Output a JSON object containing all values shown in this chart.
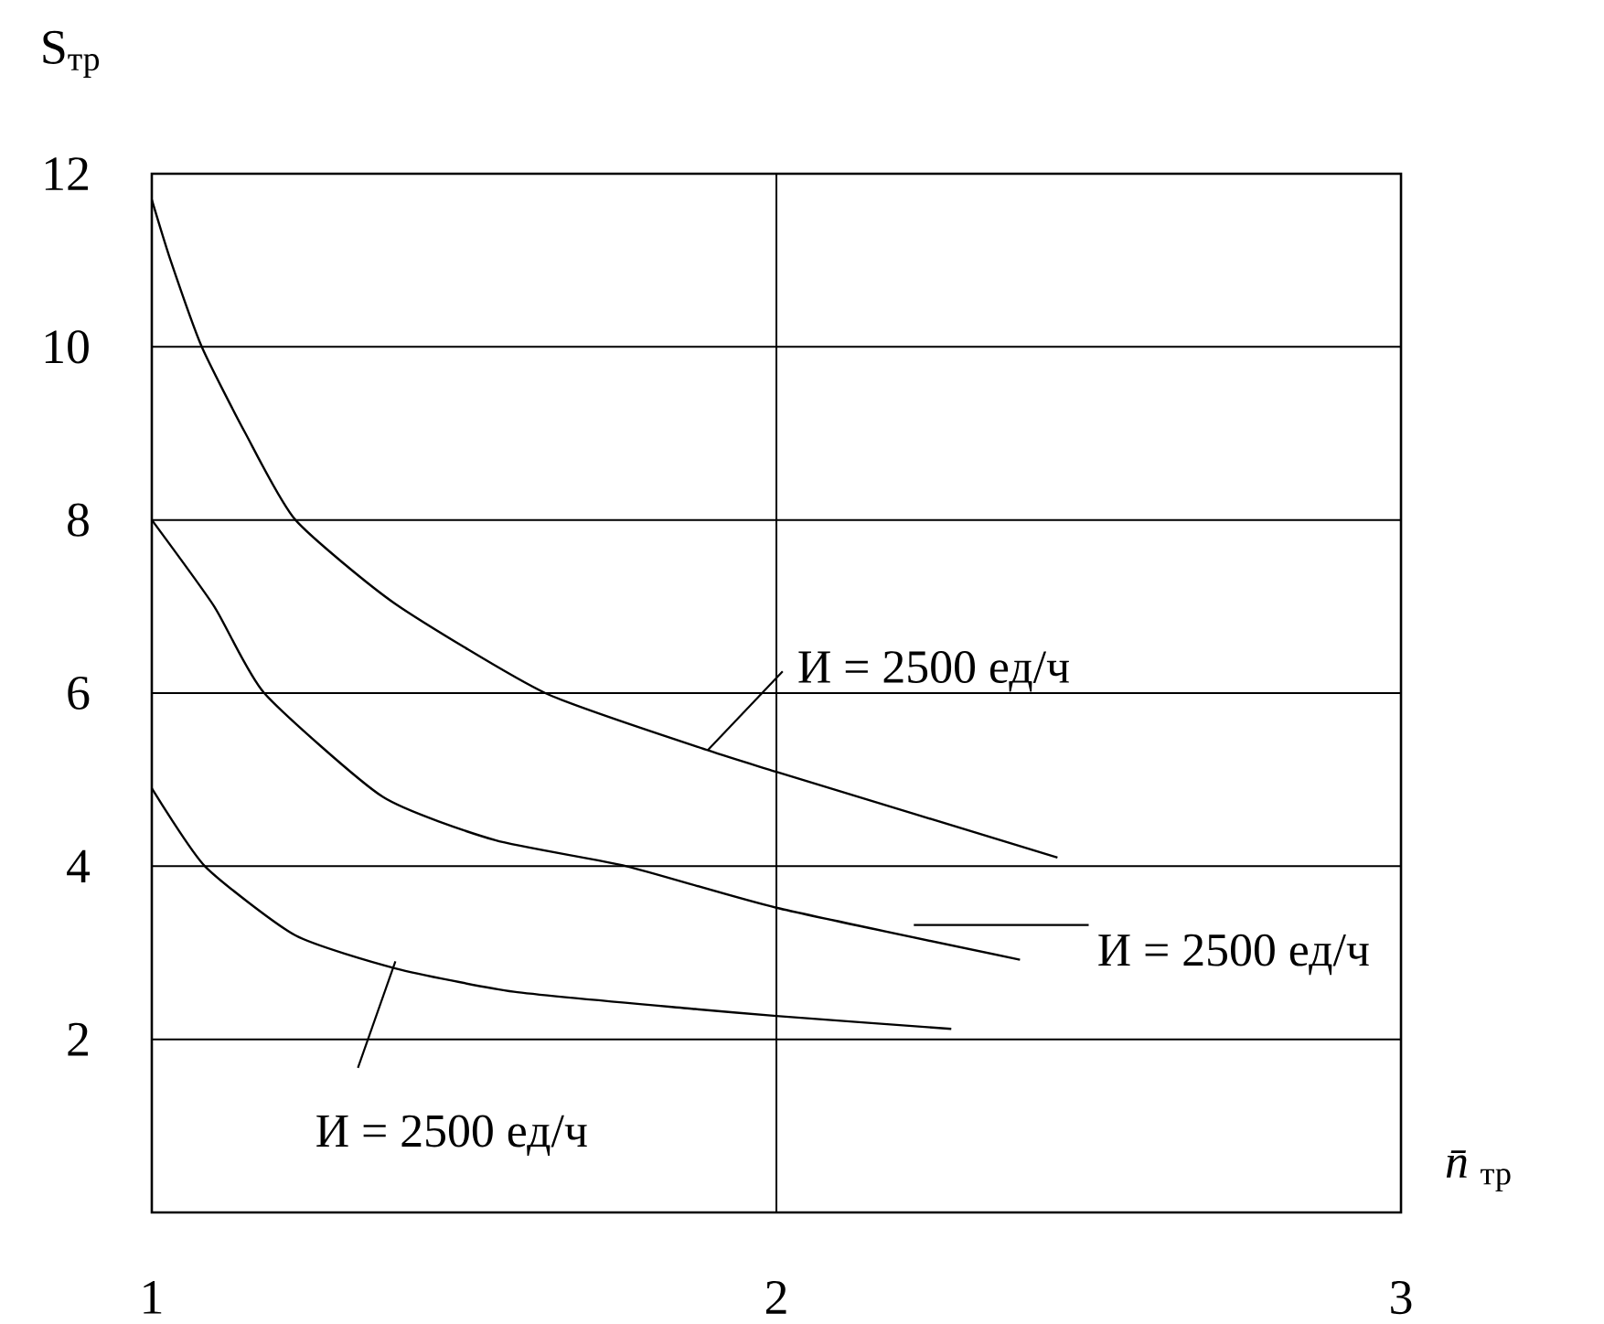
{
  "chart_data": {
    "type": "line",
    "xlabel": "*n̄*$_{тр}$",
    "ylabel": "S$_{тр}$",
    "xlim": [
      1,
      3
    ],
    "xticks": [
      1,
      2,
      3
    ],
    "ylim": [
      0,
      12
    ],
    "yticks": [
      2,
      4,
      6,
      8,
      10,
      12
    ],
    "grid": true,
    "marker": "none",
    "line_style": "solid",
    "series": [
      {
        "color": "#000000",
        "x": [
          1,
          1.03,
          1.08,
          1.15,
          1.23,
          1.39,
          1.63,
          1.89,
          2,
          2.45
        ],
        "values": [
          11.7,
          11,
          10,
          9,
          8,
          7.03,
          6,
          5.34,
          5.09,
          4.1
        ]
      },
      {
        "color": "#000000",
        "x": [
          1,
          1.1,
          1.18,
          1.37,
          1.55,
          1.76,
          2,
          2.39
        ],
        "values": [
          8,
          7,
          6,
          4.8,
          4.3,
          4,
          3.52,
          2.92
        ]
      },
      {
        "color": "#000000",
        "x": [
          1,
          1.085,
          1.23,
          1.39,
          1.58,
          1.87,
          2,
          2.28
        ],
        "values": [
          4.9,
          4,
          3.2,
          2.82,
          2.55,
          2.35,
          2.27,
          2.12
        ]
      }
    ],
    "annotations": [
      {
        "text": "И = 2500 ед/ч",
        "x": 1.89,
        "y": 5.34
      },
      "И = 2500 ед/ч",
      {
        "text": "И = 2500 ед/ч",
        "x": 1.39,
        "y": 2.9
      }
    ]
  }
}
